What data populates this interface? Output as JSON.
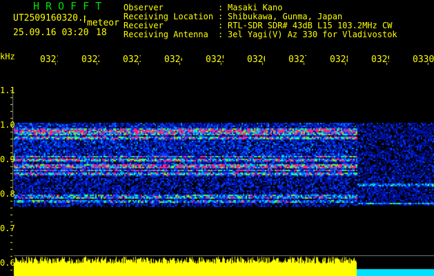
{
  "app": {
    "title": "HROFFT",
    "filename": "UT2509160320.png",
    "mode": "meteor",
    "datetime": "25.09.16 03:20",
    "count": "18"
  },
  "info": [
    {
      "label": "Observer",
      "value": "Masaki Kano"
    },
    {
      "label": "Receiving Location",
      "value": "Shibukawa, Gunma, Japan"
    },
    {
      "label": "Receiver",
      "value": "RTL-SDR SDR# 43dB L15 103.2MHz CW"
    },
    {
      "label": "Receiving Antenna",
      "value": "3el Yagi(V) Az 330 for Vladivostok"
    }
  ],
  "axis": {
    "unit": "kHz",
    "time_ticks": [
      "0321",
      "0322",
      "0323",
      "0324",
      "0325",
      "0326",
      "0327",
      "0328",
      "0329",
      "0330"
    ],
    "freq_ticks": [
      "1.1",
      "1.0",
      "0.9",
      "0.8",
      "0.7",
      "0.6"
    ]
  },
  "colors": {
    "text": "#ffff00",
    "title": "#00e000",
    "level": "#ffff00",
    "level_after": "#00e0ff"
  }
}
